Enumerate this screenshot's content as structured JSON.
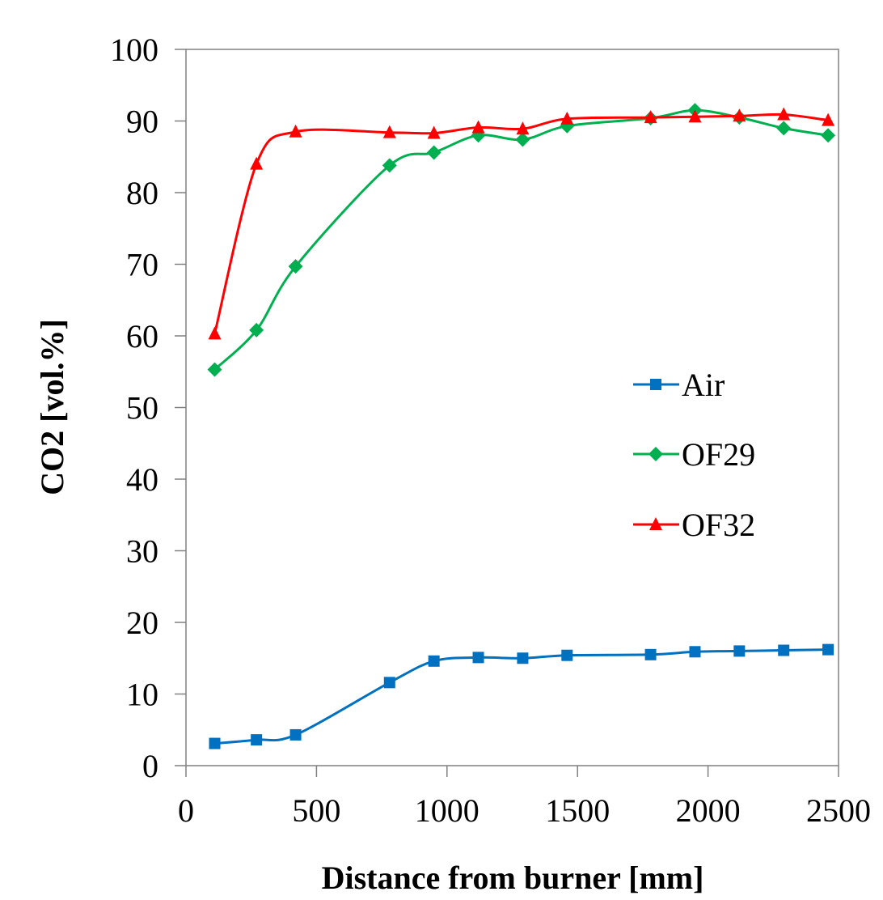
{
  "chart_data": {
    "type": "line",
    "title": "",
    "xlabel": "Distance from burner [mm]",
    "ylabel": "CO2 [vol.%]",
    "xlim": [
      0,
      2500
    ],
    "ylim": [
      0,
      100
    ],
    "x_ticks": [
      0,
      500,
      1000,
      1500,
      2000,
      2500
    ],
    "y_ticks": [
      0,
      10,
      20,
      30,
      40,
      50,
      60,
      70,
      80,
      90,
      100
    ],
    "grid": false,
    "legend_position": "right",
    "series": [
      {
        "name": "Air",
        "color": "#0070c0",
        "marker": "square",
        "x": [
          110,
          270,
          420,
          780,
          950,
          1120,
          1290,
          1460,
          1780,
          1950,
          2120,
          2290,
          2460
        ],
        "y": [
          3.1,
          3.6,
          4.3,
          11.6,
          14.6,
          15.1,
          15.0,
          15.4,
          15.5,
          15.9,
          16.0,
          16.1,
          16.2
        ]
      },
      {
        "name": "OF29",
        "color": "#00b050",
        "marker": "diamond",
        "x": [
          110,
          270,
          420,
          780,
          950,
          1120,
          1290,
          1460,
          1780,
          1950,
          2120,
          2290,
          2460
        ],
        "y": [
          55.3,
          60.8,
          69.7,
          83.8,
          85.6,
          88.0,
          87.4,
          89.3,
          90.4,
          91.5,
          90.5,
          89.0,
          88.0
        ]
      },
      {
        "name": "OF32",
        "color": "#ff0000",
        "marker": "triangle",
        "x": [
          110,
          270,
          420,
          780,
          950,
          1120,
          1290,
          1460,
          1780,
          1950,
          2120,
          2290,
          2460
        ],
        "y": [
          60.3,
          84.0,
          88.5,
          88.4,
          88.3,
          89.1,
          88.9,
          90.3,
          90.5,
          90.6,
          90.7,
          90.9,
          90.1
        ]
      }
    ]
  }
}
